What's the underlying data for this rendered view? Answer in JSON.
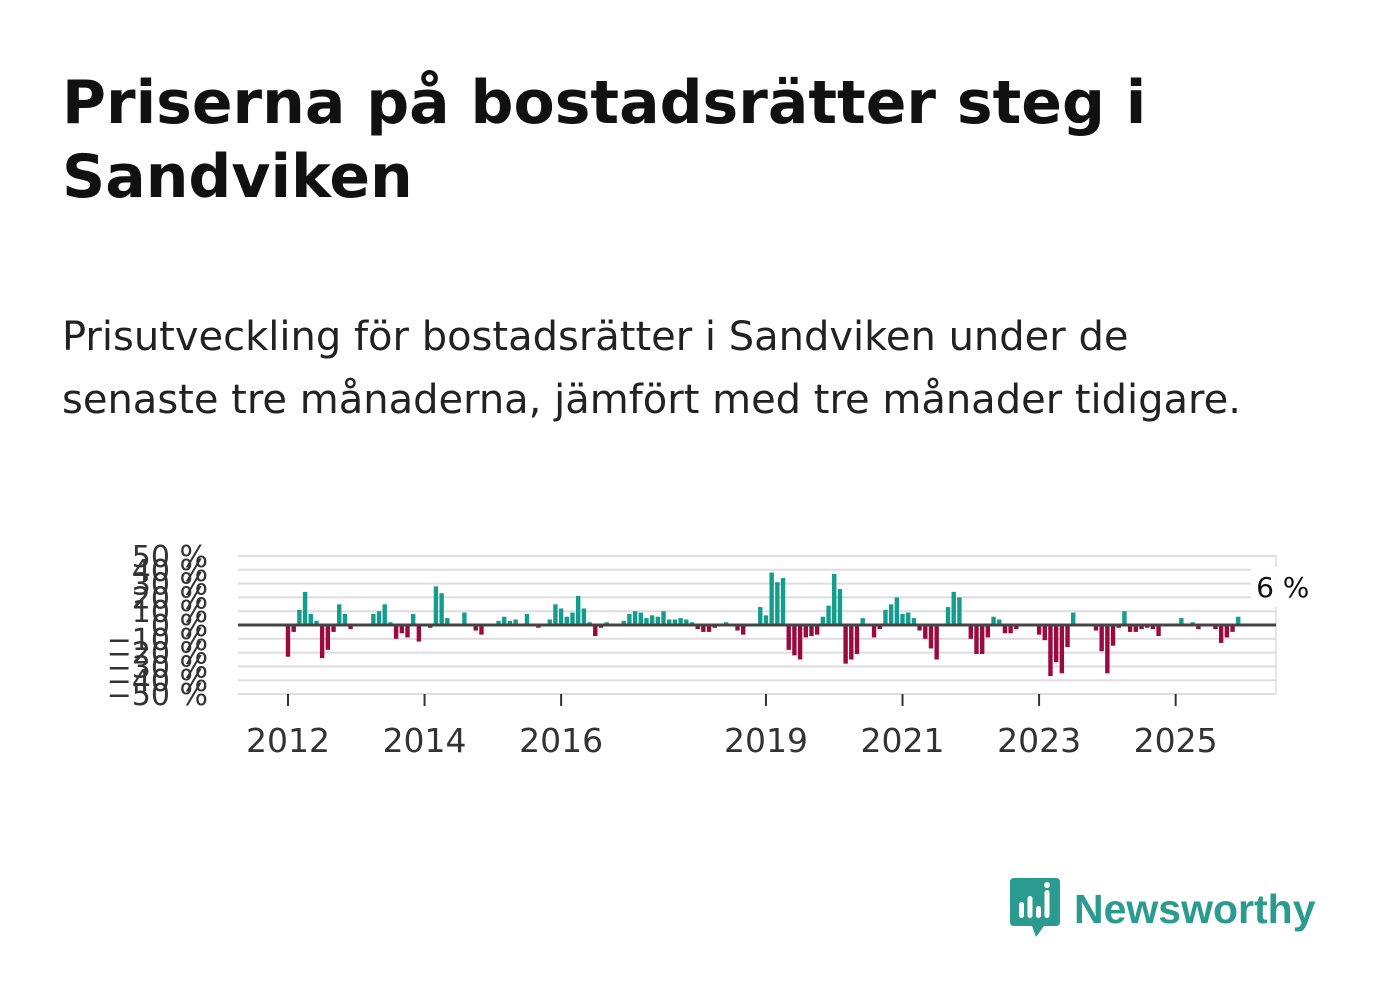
{
  "header": {
    "title": "Priserna på bostadsrätter steg i Sandviken",
    "subtitle": "Prisutveckling för bostadsrätter i Sandviken under de senaste tre månaderna, jämfört med tre månader tidigare."
  },
  "brand": {
    "name": "Newsworthy",
    "icon": "newsworthy-logo-icon"
  },
  "colors": {
    "positive": "#129d8e",
    "negative": "#9b0a3e",
    "zero_line": "#444444",
    "grid": "#dddddd"
  },
  "chart_data": {
    "type": "bar",
    "title": "Priserna på bostadsrätter steg i Sandviken",
    "xlabel": "",
    "ylabel": "",
    "ylim": [
      -50,
      50
    ],
    "y_ticks": [
      50,
      40,
      30,
      20,
      10,
      0,
      -10,
      -20,
      -30,
      -40,
      -50
    ],
    "y_tick_labels": [
      "50 %",
      "40 %",
      "30 %",
      "20 %",
      "10 %",
      "0 %",
      "−10 %",
      "−20 %",
      "−30 %",
      "−40 %",
      "−50 %"
    ],
    "x_ticks": [
      {
        "label": "2012",
        "index": 0
      },
      {
        "label": "2014",
        "index": 24
      },
      {
        "label": "2016",
        "index": 48
      },
      {
        "label": "2019",
        "index": 84
      },
      {
        "label": "2021",
        "index": 108
      },
      {
        "label": "2023",
        "index": 132
      },
      {
        "label": "2025",
        "index": 156
      }
    ],
    "start": "2012-01",
    "frequency": "monthly",
    "unit": "%",
    "values": [
      -23,
      -5,
      11,
      24,
      8,
      3,
      -24,
      -18,
      -5,
      15,
      8,
      -3,
      0,
      0,
      0,
      8,
      10,
      15,
      2,
      -10,
      -6,
      -9,
      8,
      -12,
      0,
      -2,
      28,
      23,
      5,
      0,
      0,
      9,
      0,
      -4,
      -7,
      0,
      0,
      3,
      6,
      3,
      4,
      0,
      8,
      0,
      -2,
      0,
      4,
      15,
      12,
      6,
      9,
      21,
      12,
      2,
      -8,
      -2,
      2,
      0,
      0,
      3,
      8,
      10,
      9,
      5,
      7,
      6,
      10,
      4,
      4,
      5,
      4,
      2,
      -3,
      -5,
      -5,
      -2,
      0,
      2,
      0,
      -4,
      -7,
      0,
      0,
      13,
      7,
      38,
      31,
      34,
      -18,
      -22,
      -25,
      -9,
      -8,
      -7,
      6,
      14,
      37,
      26,
      -28,
      -25,
      -21,
      5,
      0,
      -9,
      -3,
      11,
      15,
      20,
      8,
      9,
      5,
      -4,
      -10,
      -17,
      -25,
      0,
      13,
      24,
      20,
      0,
      -10,
      -21,
      -21,
      -9,
      6,
      4,
      -6,
      -6,
      -3,
      0,
      0,
      0,
      -7,
      -11,
      -37,
      -27,
      -35,
      -16,
      9,
      0,
      0,
      0,
      -4,
      -19,
      -35,
      -15,
      -2,
      10,
      -5,
      -5,
      -3,
      -2,
      -3,
      -8,
      0,
      0,
      0,
      5,
      0,
      2,
      -3,
      0,
      0,
      -3,
      -13,
      -9,
      -5,
      6
    ],
    "annotations": [
      {
        "label": "6 %",
        "index": 175
      }
    ]
  }
}
